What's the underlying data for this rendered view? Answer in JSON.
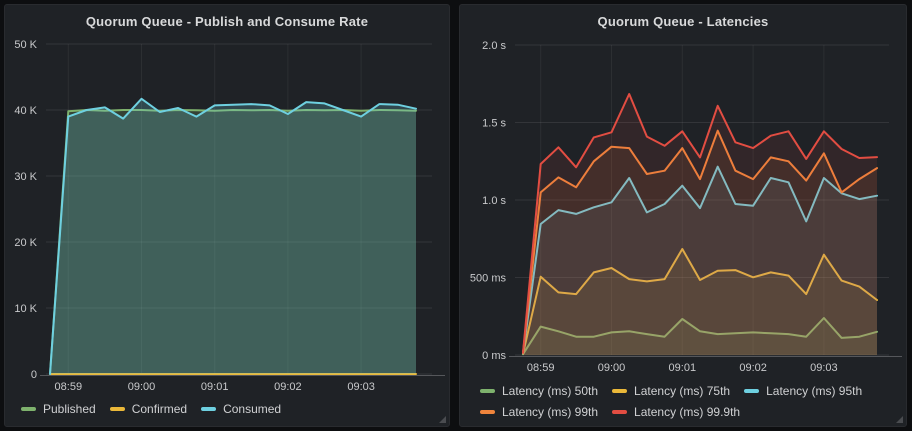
{
  "dashboard": {
    "background_color": "#0d0e10",
    "panel_background_color": "#1f2226"
  },
  "panels": [
    {
      "title": "Quorum Queue - Publish and Consume Rate"
    },
    {
      "title": "Quorum Queue - Latencies"
    }
  ],
  "chart_data": [
    {
      "type": "area",
      "title": "Quorum Queue - Publish and Consume Rate",
      "xlabel": "",
      "ylabel": "",
      "ylim": [
        0,
        50000
      ],
      "grid": true,
      "legend_position": "bottom",
      "x_times": [
        "08:58:45",
        "08:59:00",
        "08:59:15",
        "08:59:30",
        "08:59:45",
        "09:00:00",
        "09:00:15",
        "09:00:30",
        "09:00:45",
        "09:01:00",
        "09:01:15",
        "09:01:30",
        "09:01:45",
        "09:02:00",
        "09:02:15",
        "09:02:30",
        "09:02:45",
        "09:03:00",
        "09:03:15",
        "09:03:30",
        "09:03:45"
      ],
      "x_ticks": [
        {
          "m": 0,
          "label": "08:59"
        },
        {
          "m": 1,
          "label": "09:00"
        },
        {
          "m": 2,
          "label": "09:01"
        },
        {
          "m": 3,
          "label": "09:02"
        },
        {
          "m": 4,
          "label": "09:03"
        }
      ],
      "y_ticks": [
        {
          "v": 0,
          "label": "0"
        },
        {
          "v": 10000,
          "label": "10 K"
        },
        {
          "v": 20000,
          "label": "20 K"
        },
        {
          "v": 30000,
          "label": "30 K"
        },
        {
          "v": 40000,
          "label": "40 K"
        },
        {
          "v": 50000,
          "label": "50 K"
        }
      ],
      "series": [
        {
          "name": "Published",
          "color": "#7EB26D",
          "values": [
            0,
            39800,
            40000,
            39900,
            40000,
            40000,
            39900,
            40000,
            39950,
            39900,
            40000,
            39950,
            40000,
            39900,
            40000,
            39950,
            40000,
            39900,
            40000,
            39950,
            39900
          ]
        },
        {
          "name": "Confirmed",
          "color": "#EAB839",
          "values": [
            0,
            0,
            0,
            0,
            0,
            0,
            0,
            0,
            0,
            0,
            0,
            0,
            0,
            0,
            0,
            0,
            0,
            0,
            0,
            0,
            0
          ]
        },
        {
          "name": "Consumed",
          "color": "#6ED0E0",
          "values": [
            0,
            39000,
            40000,
            40400,
            38700,
            41700,
            39700,
            40300,
            39000,
            40700,
            40800,
            40900,
            40700,
            39400,
            41200,
            41000,
            40000,
            39000,
            40900,
            40800,
            40200
          ]
        }
      ]
    },
    {
      "type": "area",
      "title": "Quorum Queue - Latencies",
      "xlabel": "",
      "ylabel": "",
      "unit": "ms",
      "ylim": [
        0,
        2000
      ],
      "grid": true,
      "legend_position": "bottom",
      "x_times": [
        "08:58:45",
        "08:59:00",
        "08:59:15",
        "08:59:30",
        "08:59:45",
        "09:00:00",
        "09:00:15",
        "09:00:30",
        "09:00:45",
        "09:01:00",
        "09:01:15",
        "09:01:30",
        "09:01:45",
        "09:02:00",
        "09:02:15",
        "09:02:30",
        "09:02:45",
        "09:03:00",
        "09:03:15",
        "09:03:30",
        "09:03:45"
      ],
      "x_ticks": [
        {
          "m": 0,
          "label": "08:59"
        },
        {
          "m": 1,
          "label": "09:00"
        },
        {
          "m": 2,
          "label": "09:01"
        },
        {
          "m": 3,
          "label": "09:02"
        },
        {
          "m": 4,
          "label": "09:03"
        }
      ],
      "y_ticks": [
        {
          "v": 0,
          "label": "0 ms"
        },
        {
          "v": 500,
          "label": "500 ms"
        },
        {
          "v": 1000,
          "label": "1.0 s"
        },
        {
          "v": 1500,
          "label": "1.5 s"
        },
        {
          "v": 2000,
          "label": "2.0 s"
        }
      ],
      "series": [
        {
          "name": "Latency (ms) 50th",
          "color": "#7EB26D",
          "values": [
            5,
            183,
            153,
            118,
            118,
            146,
            153,
            135,
            118,
            232,
            153,
            135,
            140,
            146,
            140,
            135,
            118,
            239,
            110,
            118,
            150
          ]
        },
        {
          "name": "Latency (ms) 75th",
          "color": "#EAB839",
          "values": [
            8,
            505,
            404,
            393,
            533,
            561,
            490,
            475,
            490,
            684,
            484,
            544,
            548,
            501,
            533,
            512,
            393,
            647,
            480,
            441,
            355
          ]
        },
        {
          "name": "Latency (ms) 95th",
          "color": "#6ED0E0",
          "values": [
            10,
            845,
            935,
            910,
            953,
            985,
            1142,
            920,
            974,
            1092,
            948,
            1215,
            974,
            963,
            1142,
            1114,
            862,
            1142,
            1043,
            1006,
            1028
          ]
        },
        {
          "name": "Latency (ms) 99th",
          "color": "#EF843C",
          "values": [
            12,
            1049,
            1146,
            1082,
            1250,
            1344,
            1335,
            1168,
            1189,
            1335,
            1135,
            1447,
            1189,
            1135,
            1275,
            1250,
            1125,
            1301,
            1049,
            1135,
            1206
          ]
        },
        {
          "name": "Latency (ms) 99.9th",
          "color": "#E24D42",
          "values": [
            15,
            1232,
            1340,
            1211,
            1404,
            1437,
            1684,
            1409,
            1350,
            1443,
            1275,
            1608,
            1372,
            1335,
            1415,
            1443,
            1265,
            1443,
            1329,
            1271,
            1277
          ]
        }
      ]
    }
  ]
}
